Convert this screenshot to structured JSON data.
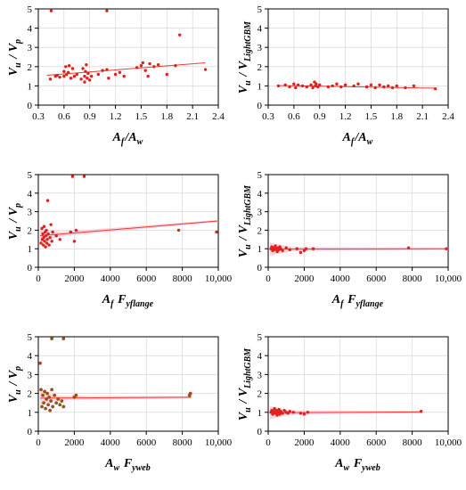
{
  "colors": {
    "point": "#e0201c",
    "fit": "#ee3a36",
    "band": "#f6c6d6",
    "point_alt": "#6b6b1e"
  },
  "chart_data": [
    {
      "type": "scatter",
      "ylabel": "V_u / V_p",
      "xlabel": "A_f/A_w",
      "xlim": [
        0.3,
        2.4
      ],
      "xticks": [
        "0.3",
        "0.6",
        "0.9",
        "1.2",
        "1.5",
        "1.8",
        "2.1",
        "2.4"
      ],
      "ylim": [
        0,
        5
      ],
      "yticks": [
        "0",
        "1",
        "2",
        "3",
        "4",
        "5"
      ],
      "fit": [
        [
          0.4,
          1.55
        ],
        [
          2.25,
          2.2
        ]
      ],
      "band": false,
      "points": [
        [
          0.44,
          1.35
        ],
        [
          0.5,
          1.5
        ],
        [
          0.52,
          1.55
        ],
        [
          0.55,
          1.45
        ],
        [
          0.6,
          1.5
        ],
        [
          0.6,
          1.75
        ],
        [
          0.62,
          2.0
        ],
        [
          0.63,
          1.6
        ],
        [
          0.65,
          1.7
        ],
        [
          0.66,
          2.05
        ],
        [
          0.68,
          1.4
        ],
        [
          0.7,
          1.9
        ],
        [
          0.72,
          1.5
        ],
        [
          0.75,
          1.6
        ],
        [
          0.8,
          1.35
        ],
        [
          0.82,
          1.9
        ],
        [
          0.84,
          1.2
        ],
        [
          0.84,
          1.5
        ],
        [
          0.85,
          1.75
        ],
        [
          0.86,
          2.1
        ],
        [
          0.87,
          1.4
        ],
        [
          0.88,
          1.65
        ],
        [
          0.9,
          1.3
        ],
        [
          0.92,
          1.5
        ],
        [
          1.0,
          1.6
        ],
        [
          1.05,
          1.8
        ],
        [
          1.1,
          1.85
        ],
        [
          1.12,
          1.4
        ],
        [
          1.2,
          1.6
        ],
        [
          1.25,
          1.7
        ],
        [
          1.3,
          1.5
        ],
        [
          1.45,
          1.95
        ],
        [
          1.5,
          2.05
        ],
        [
          1.52,
          2.2
        ],
        [
          1.55,
          1.8
        ],
        [
          1.58,
          1.5
        ],
        [
          1.6,
          2.15
        ],
        [
          1.65,
          2.0
        ],
        [
          1.7,
          2.1
        ],
        [
          1.8,
          1.6
        ],
        [
          1.9,
          2.05
        ],
        [
          1.95,
          3.65
        ],
        [
          2.25,
          1.85
        ],
        [
          0.45,
          4.9
        ],
        [
          1.1,
          4.9
        ]
      ]
    },
    {
      "type": "scatter",
      "ylabel": "V_u / V_LightGBM",
      "xlabel": "A_f/A_w",
      "xlim": [
        0.3,
        2.4
      ],
      "xticks": [
        "0.3",
        "0.6",
        "0.9",
        "1.2",
        "1.5",
        "1.8",
        "2.1",
        "2.4"
      ],
      "ylim": [
        0,
        5
      ],
      "yticks": [
        "0",
        "1",
        "2",
        "3",
        "4",
        "5"
      ],
      "fit": [
        [
          0.4,
          1.02
        ],
        [
          2.25,
          0.88
        ]
      ],
      "band": false,
      "points": [
        [
          0.42,
          1.0
        ],
        [
          0.5,
          1.05
        ],
        [
          0.55,
          0.95
        ],
        [
          0.6,
          1.1
        ],
        [
          0.62,
          0.9
        ],
        [
          0.65,
          1.05
        ],
        [
          0.7,
          1.0
        ],
        [
          0.75,
          0.95
        ],
        [
          0.8,
          1.05
        ],
        [
          0.82,
          0.9
        ],
        [
          0.84,
          1.2
        ],
        [
          0.85,
          1.0
        ],
        [
          0.86,
          1.1
        ],
        [
          0.88,
          0.95
        ],
        [
          0.9,
          1.05
        ],
        [
          1.0,
          0.95
        ],
        [
          1.05,
          1.0
        ],
        [
          1.1,
          1.1
        ],
        [
          1.15,
          0.95
        ],
        [
          1.2,
          1.05
        ],
        [
          1.3,
          1.0
        ],
        [
          1.35,
          1.1
        ],
        [
          1.45,
          0.95
        ],
        [
          1.5,
          1.05
        ],
        [
          1.55,
          0.9
        ],
        [
          1.6,
          1.05
        ],
        [
          1.65,
          0.95
        ],
        [
          1.7,
          1.0
        ],
        [
          1.75,
          0.9
        ],
        [
          1.8,
          1.0
        ],
        [
          1.9,
          0.9
        ],
        [
          2.0,
          1.0
        ],
        [
          2.25,
          0.85
        ]
      ]
    },
    {
      "type": "scatter",
      "ylabel": "V_u / V_p",
      "xlabel": "A_f F_yflange",
      "xlim": [
        0,
        10000
      ],
      "xticks": [
        "0",
        "2000",
        "4000",
        "6000",
        "8000",
        "10,000"
      ],
      "ylim": [
        0,
        5
      ],
      "yticks": [
        "0",
        "1",
        "2",
        "3",
        "4",
        "5"
      ],
      "fit": [
        [
          100,
          1.7
        ],
        [
          10000,
          2.5
        ]
      ],
      "band": true,
      "points": [
        [
          150,
          1.3
        ],
        [
          200,
          2.1
        ],
        [
          220,
          1.5
        ],
        [
          250,
          1.8
        ],
        [
          280,
          1.2
        ],
        [
          300,
          1.6
        ],
        [
          320,
          2.2
        ],
        [
          350,
          1.4
        ],
        [
          380,
          1.9
        ],
        [
          400,
          1.1
        ],
        [
          420,
          1.7
        ],
        [
          450,
          2.0
        ],
        [
          480,
          1.3
        ],
        [
          500,
          1.5
        ],
        [
          520,
          3.6
        ],
        [
          550,
          1.8
        ],
        [
          600,
          1.2
        ],
        [
          650,
          1.6
        ],
        [
          700,
          2.3
        ],
        [
          750,
          1.4
        ],
        [
          800,
          1.9
        ],
        [
          1000,
          1.7
        ],
        [
          1200,
          1.5
        ],
        [
          1800,
          1.9
        ],
        [
          2000,
          1.4
        ],
        [
          2100,
          2.0
        ],
        [
          7800,
          2.0
        ],
        [
          9900,
          1.9
        ],
        [
          1900,
          4.9
        ],
        [
          2550,
          4.9
        ]
      ]
    },
    {
      "type": "scatter",
      "ylabel": "V_u / V_LightGBM",
      "xlabel": "A_f F_yflange",
      "xlim": [
        0,
        10000
      ],
      "xticks": [
        "0",
        "2000",
        "4000",
        "6000",
        "8000",
        "10,000"
      ],
      "ylim": [
        0,
        5
      ],
      "yticks": [
        "0",
        "1",
        "2",
        "3",
        "4",
        "5"
      ],
      "fit": [
        [
          100,
          0.98
        ],
        [
          10000,
          1.0
        ]
      ],
      "band": true,
      "points": [
        [
          150,
          1.0
        ],
        [
          200,
          1.1
        ],
        [
          250,
          0.9
        ],
        [
          300,
          1.05
        ],
        [
          350,
          0.95
        ],
        [
          400,
          1.15
        ],
        [
          450,
          1.0
        ],
        [
          500,
          0.85
        ],
        [
          550,
          1.05
        ],
        [
          600,
          0.95
        ],
        [
          650,
          1.1
        ],
        [
          700,
          1.0
        ],
        [
          800,
          0.9
        ],
        [
          1000,
          1.05
        ],
        [
          1200,
          0.95
        ],
        [
          1600,
          1.0
        ],
        [
          1800,
          0.8
        ],
        [
          2000,
          0.9
        ],
        [
          2100,
          1.0
        ],
        [
          2500,
          1.0
        ],
        [
          7800,
          1.05
        ],
        [
          9900,
          1.0
        ]
      ]
    },
    {
      "type": "scatter",
      "ylabel": "V_u / V_p",
      "xlabel": "A_w F_yweb",
      "xlim": [
        0,
        10000
      ],
      "xticks": [
        "0",
        "2000",
        "4000",
        "6000",
        "8000",
        "10,000"
      ],
      "ylim": [
        0,
        5
      ],
      "yticks": [
        "0",
        "1",
        "2",
        "3",
        "4",
        "5"
      ],
      "fit": [
        [
          100,
          1.75
        ],
        [
          8500,
          1.8
        ]
      ],
      "band": true,
      "points": [
        [
          100,
          3.6
        ],
        [
          150,
          2.2
        ],
        [
          200,
          1.3
        ],
        [
          250,
          1.9
        ],
        [
          300,
          1.5
        ],
        [
          350,
          2.1
        ],
        [
          400,
          1.2
        ],
        [
          450,
          1.7
        ],
        [
          500,
          2.0
        ],
        [
          550,
          1.4
        ],
        [
          600,
          1.8
        ],
        [
          650,
          1.1
        ],
        [
          700,
          1.6
        ],
        [
          750,
          2.2
        ],
        [
          800,
          1.3
        ],
        [
          900,
          1.9
        ],
        [
          1000,
          1.5
        ],
        [
          1100,
          1.7
        ],
        [
          1200,
          1.4
        ],
        [
          1300,
          1.6
        ],
        [
          1400,
          1.3
        ],
        [
          2000,
          1.8
        ],
        [
          2100,
          1.9
        ],
        [
          8400,
          1.9
        ],
        [
          8450,
          2.0
        ],
        [
          750,
          4.9
        ],
        [
          1400,
          4.9
        ]
      ]
    },
    {
      "type": "scatter",
      "ylabel": "V_u / V_LightGBM",
      "xlabel": "A_w F_yweb",
      "xlim": [
        0,
        10000
      ],
      "xticks": [
        "0",
        "2000",
        "4000",
        "6000",
        "8000",
        "10,000"
      ],
      "ylim": [
        0,
        5
      ],
      "yticks": [
        "0",
        "1",
        "2",
        "3",
        "4",
        "5"
      ],
      "fit": [
        [
          100,
          0.98
        ],
        [
          8500,
          1.02
        ]
      ],
      "band": true,
      "points": [
        [
          150,
          1.0
        ],
        [
          200,
          1.1
        ],
        [
          250,
          0.9
        ],
        [
          300,
          1.05
        ],
        [
          350,
          1.2
        ],
        [
          400,
          0.95
        ],
        [
          450,
          1.1
        ],
        [
          500,
          0.85
        ],
        [
          550,
          1.0
        ],
        [
          600,
          1.15
        ],
        [
          650,
          0.9
        ],
        [
          700,
          1.05
        ],
        [
          800,
          0.95
        ],
        [
          900,
          1.1
        ],
        [
          1000,
          1.0
        ],
        [
          1100,
          0.95
        ],
        [
          1200,
          1.05
        ],
        [
          1400,
          1.0
        ],
        [
          1800,
          0.95
        ],
        [
          2000,
          0.9
        ],
        [
          2200,
          1.0
        ],
        [
          8500,
          1.05
        ]
      ]
    }
  ]
}
